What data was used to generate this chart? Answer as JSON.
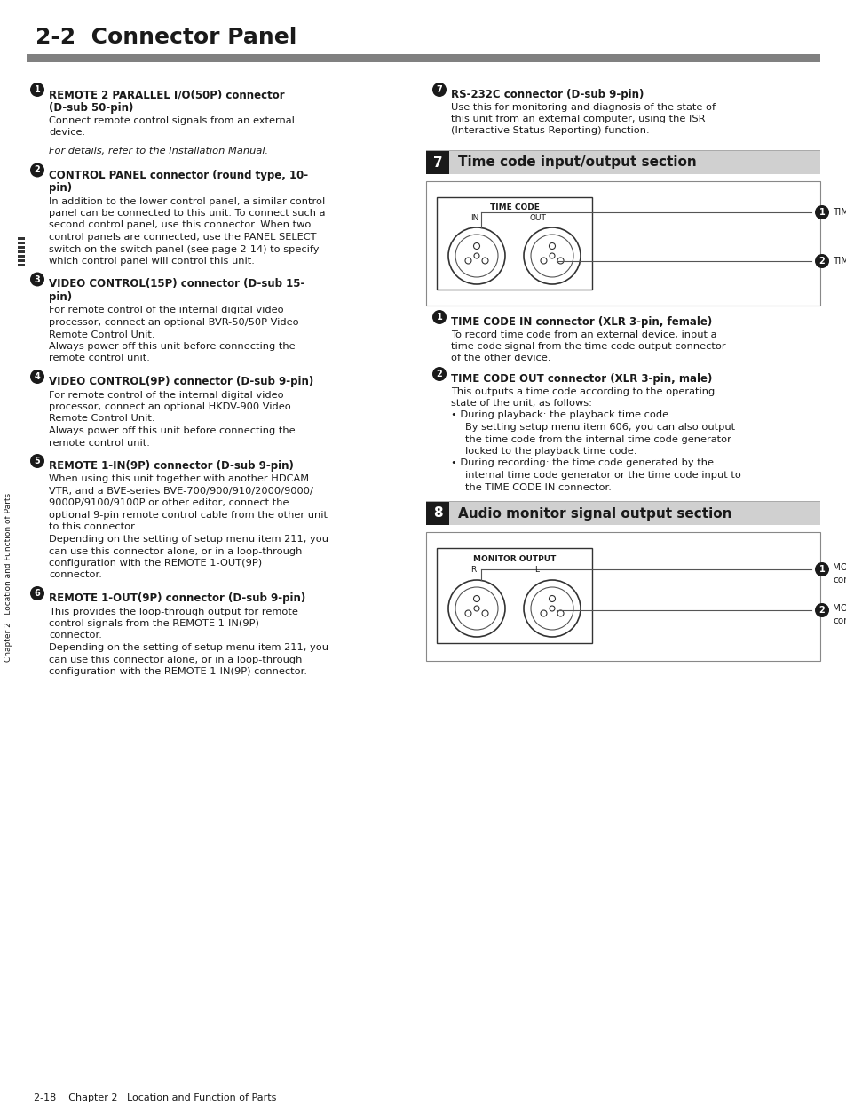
{
  "title": "2-2  Connector Panel",
  "background_color": "#ffffff",
  "text_color": "#1a1a1a",
  "page_footer": "2-18    Chapter 2   Location and Function of Parts",
  "sidebar_text": "Chapter 2   Location and Function of Parts",
  "left_sections": [
    {
      "bullet": "1",
      "heading1": "REMOTE 2 PARALLEL I/O(50P) connector",
      "heading2": "(D-sub 50-pin)",
      "body": [
        "Connect remote control signals from an external",
        "device."
      ],
      "italic": "For details, refer to the Installation Manual.",
      "extra_space": true
    },
    {
      "bullet": "2",
      "heading1": "CONTROL PANEL connector (round type, 10-",
      "heading2": "pin)",
      "body": [
        "In addition to the lower control panel, a similar control",
        "panel can be connected to this unit. To connect such a",
        "second control panel, use this connector. When two",
        "control panels are connected, use the PANEL SELECT",
        "switch on the switch panel (see page 2-14) to specify",
        "which control panel will control this unit."
      ],
      "italic": null,
      "extra_space": false
    },
    {
      "bullet": "3",
      "heading1": "VIDEO CONTROL(15P) connector (D-sub 15-",
      "heading2": "pin)",
      "body": [
        "For remote control of the internal digital video",
        "processor, connect an optional BVR-50/50P Video",
        "Remote Control Unit.",
        "Always power off this unit before connecting the",
        "remote control unit."
      ],
      "italic": null,
      "extra_space": false
    },
    {
      "bullet": "4",
      "heading1": "VIDEO CONTROL(9P) connector (D-sub 9-pin)",
      "heading2": null,
      "body": [
        "For remote control of the internal digital video",
        "processor, connect an optional HKDV-900 Video",
        "Remote Control Unit.",
        "Always power off this unit before connecting the",
        "remote control unit."
      ],
      "italic": null,
      "extra_space": false
    },
    {
      "bullet": "5",
      "heading1": "REMOTE 1-IN(9P) connector (D-sub 9-pin)",
      "heading2": null,
      "body": [
        "When using this unit together with another HDCAM",
        "VTR, and a BVE-series BVE-700/900/910/2000/9000/",
        "9000P/9100/9100P or other editor, connect the",
        "optional 9-pin remote control cable from the other unit",
        "to this connector.",
        "Depending on the setting of setup menu item 211, you",
        "can use this connector alone, or in a loop-through",
        "configuration with the REMOTE 1-OUT(9P)",
        "connector."
      ],
      "italic": null,
      "extra_space": false
    },
    {
      "bullet": "6",
      "heading1": "REMOTE 1-OUT(9P) connector (D-sub 9-pin)",
      "heading2": null,
      "body": [
        "This provides the loop-through output for remote",
        "control signals from the REMOTE 1-IN(9P)",
        "connector.",
        "Depending on the setting of setup menu item 211, you",
        "can use this connector alone, or in a loop-through",
        "configuration with the REMOTE 1-IN(9P) connector."
      ],
      "italic": null,
      "extra_space": false
    }
  ],
  "right_section_rs232": {
    "bullet": "7",
    "heading1": "RS-232C connector (D-sub 9-pin)",
    "body": [
      "Use this for monitoring and diagnosis of the state of",
      "this unit from an external computer, using the ISR",
      "(Interactive Status Reporting) function."
    ]
  },
  "section7_title": "Time code input/output section",
  "section7_num": "7",
  "section7_items": [
    {
      "bullet": "1",
      "heading1": "TIME CODE IN connector (XLR 3-pin, female)",
      "body": [
        "To record time code from an external device, input a",
        "time code signal from the time code output connector",
        "of the other device."
      ]
    },
    {
      "bullet": "2",
      "heading1": "TIME CODE OUT connector (XLR 3-pin, male)",
      "body": [
        "This outputs a time code according to the operating",
        "state of the unit, as follows:",
        "• During playback: the playback time code",
        "  By setting setup menu item 606, you can also output",
        "  the time code from the internal time code generator",
        "  locked to the playback time code.",
        "• During recording: the time code generated by the",
        "  internal time code generator or the time code input to",
        "  the TIME CODE IN connector."
      ]
    }
  ],
  "section8_title": "Audio monitor signal output section",
  "section8_num": "8",
  "section8_items": [
    {
      "bullet": "1",
      "label1": "MONITOR OUTPUT R",
      "label2": "connector"
    },
    {
      "bullet": "2",
      "label1": "MONITOR OUTPUT L",
      "label2": "connector"
    }
  ]
}
